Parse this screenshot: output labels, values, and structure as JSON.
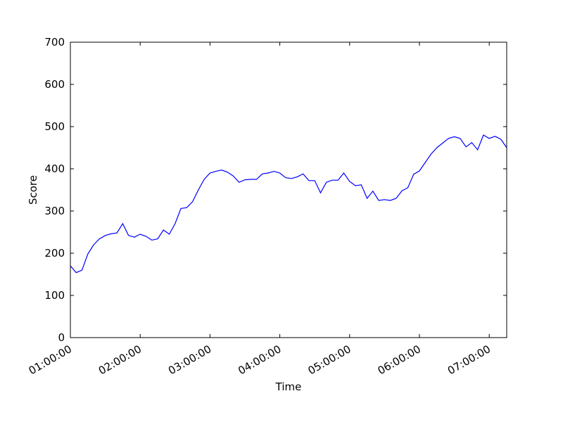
{
  "chart_data": {
    "type": "line",
    "x_label": "Time",
    "y_label": "Score",
    "x": [
      "01:00:00",
      "01:05:00",
      "01:10:00",
      "01:15:00",
      "01:20:00",
      "01:25:00",
      "01:30:00",
      "01:35:00",
      "01:40:00",
      "01:45:00",
      "01:50:00",
      "01:55:00",
      "02:00:00",
      "02:05:00",
      "02:10:00",
      "02:15:00",
      "02:20:00",
      "02:25:00",
      "02:30:00",
      "02:35:00",
      "02:40:00",
      "02:45:00",
      "02:50:00",
      "02:55:00",
      "03:00:00",
      "03:05:00",
      "03:10:00",
      "03:15:00",
      "03:20:00",
      "03:25:00",
      "03:30:00",
      "03:35:00",
      "03:40:00",
      "03:45:00",
      "03:50:00",
      "03:55:00",
      "04:00:00",
      "04:05:00",
      "04:10:00",
      "04:15:00",
      "04:20:00",
      "04:25:00",
      "04:30:00",
      "04:35:00",
      "04:40:00",
      "04:45:00",
      "04:50:00",
      "04:55:00",
      "05:00:00",
      "05:05:00",
      "05:10:00",
      "05:15:00",
      "05:20:00",
      "05:25:00",
      "05:30:00",
      "05:35:00",
      "05:40:00",
      "05:45:00",
      "05:50:00",
      "05:55:00",
      "06:00:00",
      "06:05:00",
      "06:10:00",
      "06:15:00",
      "06:20:00",
      "06:25:00",
      "06:30:00",
      "06:35:00",
      "06:40:00",
      "06:45:00",
      "06:50:00",
      "06:55:00",
      "07:00:00",
      "07:05:00",
      "07:10:00",
      "07:15:00"
    ],
    "series": [
      {
        "name": "Score",
        "color": "#0000ff",
        "values": [
          170,
          154,
          160,
          198,
          220,
          234,
          242,
          246,
          248,
          270,
          242,
          238,
          245,
          240,
          231,
          234,
          255,
          245,
          270,
          306,
          308,
          322,
          350,
          375,
          390,
          394,
          397,
          392,
          383,
          368,
          374,
          375,
          375,
          388,
          390,
          394,
          390,
          379,
          377,
          381,
          388,
          372,
          372,
          343,
          368,
          373,
          373,
          390,
          370,
          360,
          362,
          330,
          347,
          325,
          327,
          325,
          330,
          348,
          355,
          387,
          395,
          415,
          435,
          450,
          461,
          472,
          476,
          472,
          452,
          462,
          445,
          480,
          472,
          477,
          470,
          450
        ]
      }
    ],
    "xlim": [
      "01:00:00",
      "07:15:00"
    ],
    "xticks": [
      "01:00:00",
      "02:00:00",
      "03:00:00",
      "04:00:00",
      "05:00:00",
      "06:00:00",
      "07:00:00"
    ],
    "ylim": [
      0,
      700
    ],
    "yticks": [
      0,
      100,
      200,
      300,
      400,
      500,
      600,
      700
    ],
    "grid": false
  }
}
